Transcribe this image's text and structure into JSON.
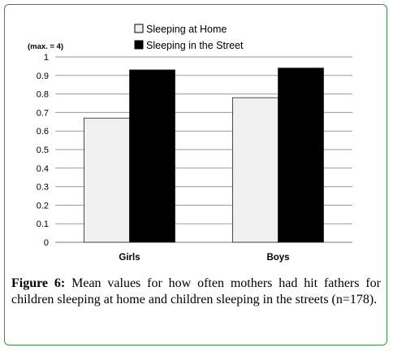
{
  "chart_data": {
    "type": "bar",
    "categories": [
      "Girls",
      "Boys"
    ],
    "series": [
      {
        "name": "Sleeping at Home",
        "values": [
          0.67,
          0.78
        ],
        "color": "#f0f0f0"
      },
      {
        "name": "Sleeping in the Street",
        "values": [
          0.93,
          0.94
        ],
        "color": "#000000"
      }
    ],
    "ylim": [
      0,
      1
    ],
    "yticks": [
      "0",
      "0.1",
      "0.2",
      "0.3",
      "0.4",
      "0.5",
      "0.6",
      "0.7",
      "0.8",
      "0.9",
      "1"
    ],
    "scale_note": "(max. = 4)",
    "grid": true,
    "legend_position": "top-center"
  },
  "caption": {
    "label": "Figure 6:",
    "text": "Mean values for how often mothers had hit fathers for children sleeping at home and children sleeping in the streets (n=178)."
  }
}
